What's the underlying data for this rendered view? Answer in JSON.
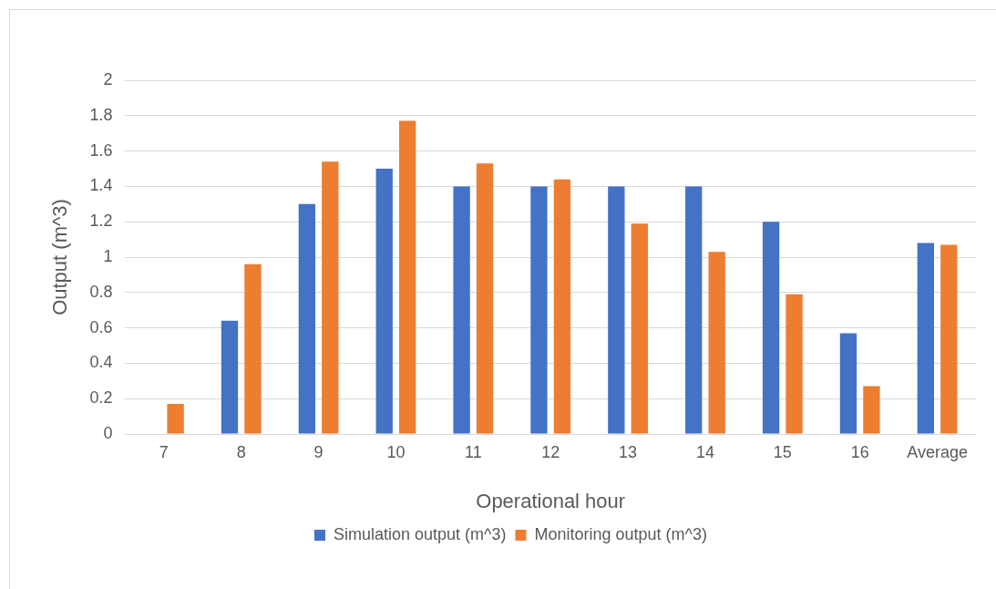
{
  "chart_data": {
    "type": "bar",
    "xlabel": "Operational hour",
    "ylabel": "Output (m^3)",
    "categories": [
      "7",
      "8",
      "9",
      "10",
      "11",
      "12",
      "13",
      "14",
      "15",
      "16",
      "Average"
    ],
    "series": [
      {
        "name": "Simulation output (m^3)",
        "color": "#4472c4",
        "values": [
          null,
          0.64,
          1.3,
          1.5,
          1.4,
          1.4,
          1.4,
          1.4,
          1.2,
          0.57,
          1.08
        ]
      },
      {
        "name": "Monitoring output (m^3)",
        "color": "#ed7d31",
        "values": [
          0.17,
          0.96,
          1.54,
          1.77,
          1.53,
          1.44,
          1.19,
          1.03,
          0.79,
          0.27,
          1.07
        ]
      }
    ],
    "ylim": [
      0,
      2
    ],
    "yticks": [
      0,
      0.2,
      0.4,
      0.6,
      0.8,
      1,
      1.2,
      1.4,
      1.6,
      1.8,
      2
    ],
    "grid": "y",
    "legend": "bottom"
  }
}
